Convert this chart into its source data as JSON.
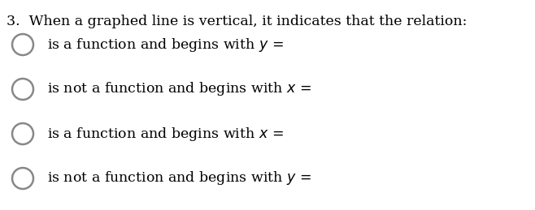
{
  "background_color": "#ffffff",
  "fig_width": 6.58,
  "fig_height": 2.59,
  "dpi": 100,
  "question": "3.  When a graphed line is vertical, it indicates that the relation:",
  "options_plain": [
    "is a function and begins with ",
    "is not a function and begins with ",
    "is a function and begins with ",
    "is not a function and begins with "
  ],
  "options_italic": [
    "y",
    "x",
    "x",
    "y"
  ],
  "text_color": "#000000",
  "circle_edge_color": "#888888",
  "circle_face_color": "#ffffff",
  "circle_linewidth": 1.8,
  "question_fontsize": 12.5,
  "option_fontsize": 12.5
}
